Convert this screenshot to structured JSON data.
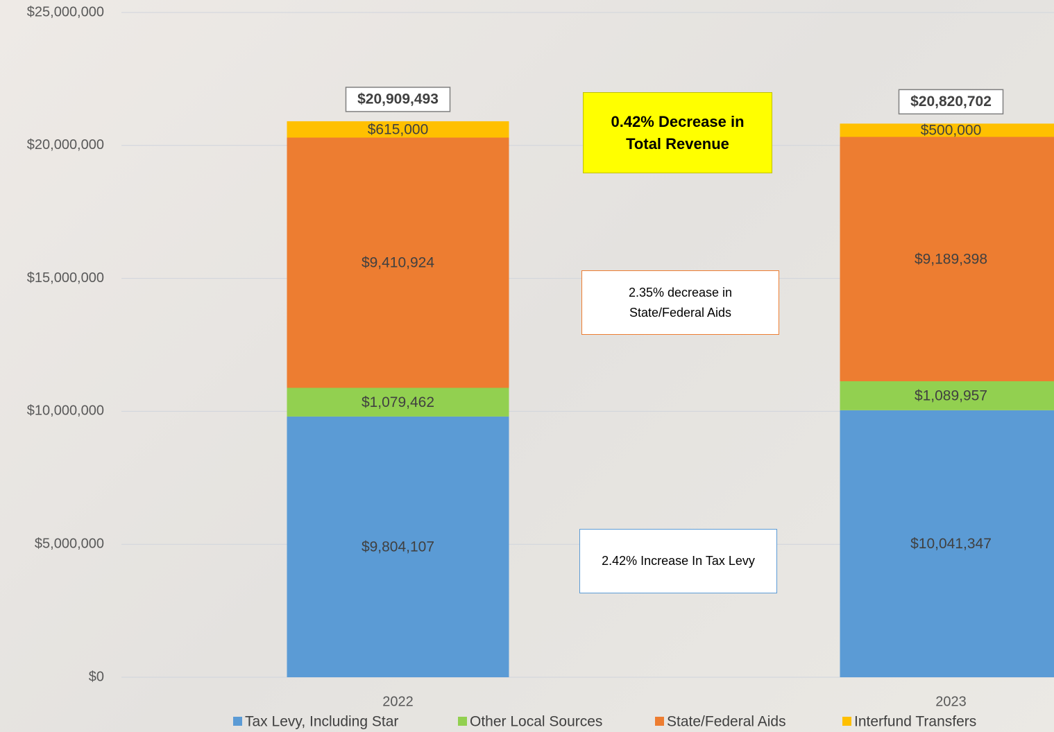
{
  "chart_data": {
    "type": "stacked_bar",
    "categories": [
      "2022",
      "2023"
    ],
    "series": [
      {
        "name": "Tax Levy, Including Star",
        "color": "#5b9bd5",
        "values": [
          9804107,
          10041347
        ],
        "value_labels": [
          "$9,804,107",
          "$10,041,347"
        ]
      },
      {
        "name": "Other Local Sources",
        "color": "#92d050",
        "values": [
          1079462,
          1089957
        ],
        "value_labels": [
          "$1,079,462",
          "$1,089,957"
        ]
      },
      {
        "name": "State/Federal Aids",
        "color": "#ed7d31",
        "values": [
          9410924,
          9189398
        ],
        "value_labels": [
          "$9,410,924",
          "$9,189,398"
        ]
      },
      {
        "name": "Interfund Transfers",
        "color": "#ffc000",
        "values": [
          615000,
          500000
        ],
        "value_labels": [
          "$615,000",
          "$500,000"
        ]
      }
    ],
    "totals": [
      20909493,
      20820702
    ],
    "total_labels": [
      "$20,909,493",
      "$20,820,702"
    ],
    "ylim": [
      0,
      25000000
    ],
    "yticks": [
      {
        "value": 0,
        "label": "$0"
      },
      {
        "value": 5000000,
        "label": "$5,000,000"
      },
      {
        "value": 10000000,
        "label": "$10,000,000"
      },
      {
        "value": 15000000,
        "label": "$15,000,000"
      },
      {
        "value": 20000000,
        "label": "$20,000,000"
      },
      {
        "value": 25000000,
        "label": "$25,000,000"
      }
    ],
    "grid": true,
    "legend": "bottom",
    "annotations": [
      "0.42% Decrease in Total Revenue",
      "2.35% decrease in State/Federal Aids",
      "2.42% Increase In Tax Levy"
    ]
  }
}
